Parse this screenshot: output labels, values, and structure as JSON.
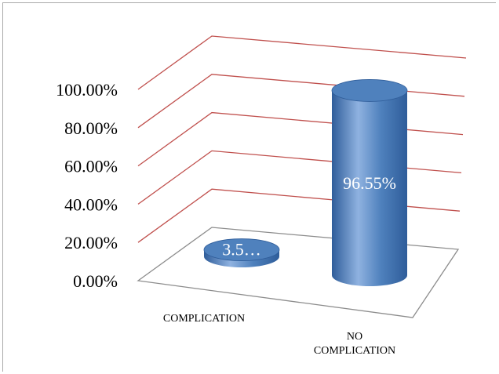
{
  "chart_data": {
    "type": "bar",
    "style": "3d-cylinder",
    "categories": [
      "COMPLICATION",
      "NO COMPLICATION"
    ],
    "values": [
      3.45,
      96.55
    ],
    "data_labels": [
      "3.5…",
      "96.55%"
    ],
    "ytick_labels": [
      "0.00%",
      "20.00%",
      "40.00%",
      "60.00%",
      "80.00%",
      "100.00%"
    ],
    "ylim": [
      0,
      100
    ],
    "grid": true,
    "title": "",
    "xlabel": "",
    "ylabel": "",
    "colors": {
      "bar_fill": "#4f81bd",
      "bar_dark": "#2f5d9a",
      "bar_light": "#8fb2e0",
      "gridline": "#c0504d",
      "floor": "#8c8c8c"
    }
  }
}
